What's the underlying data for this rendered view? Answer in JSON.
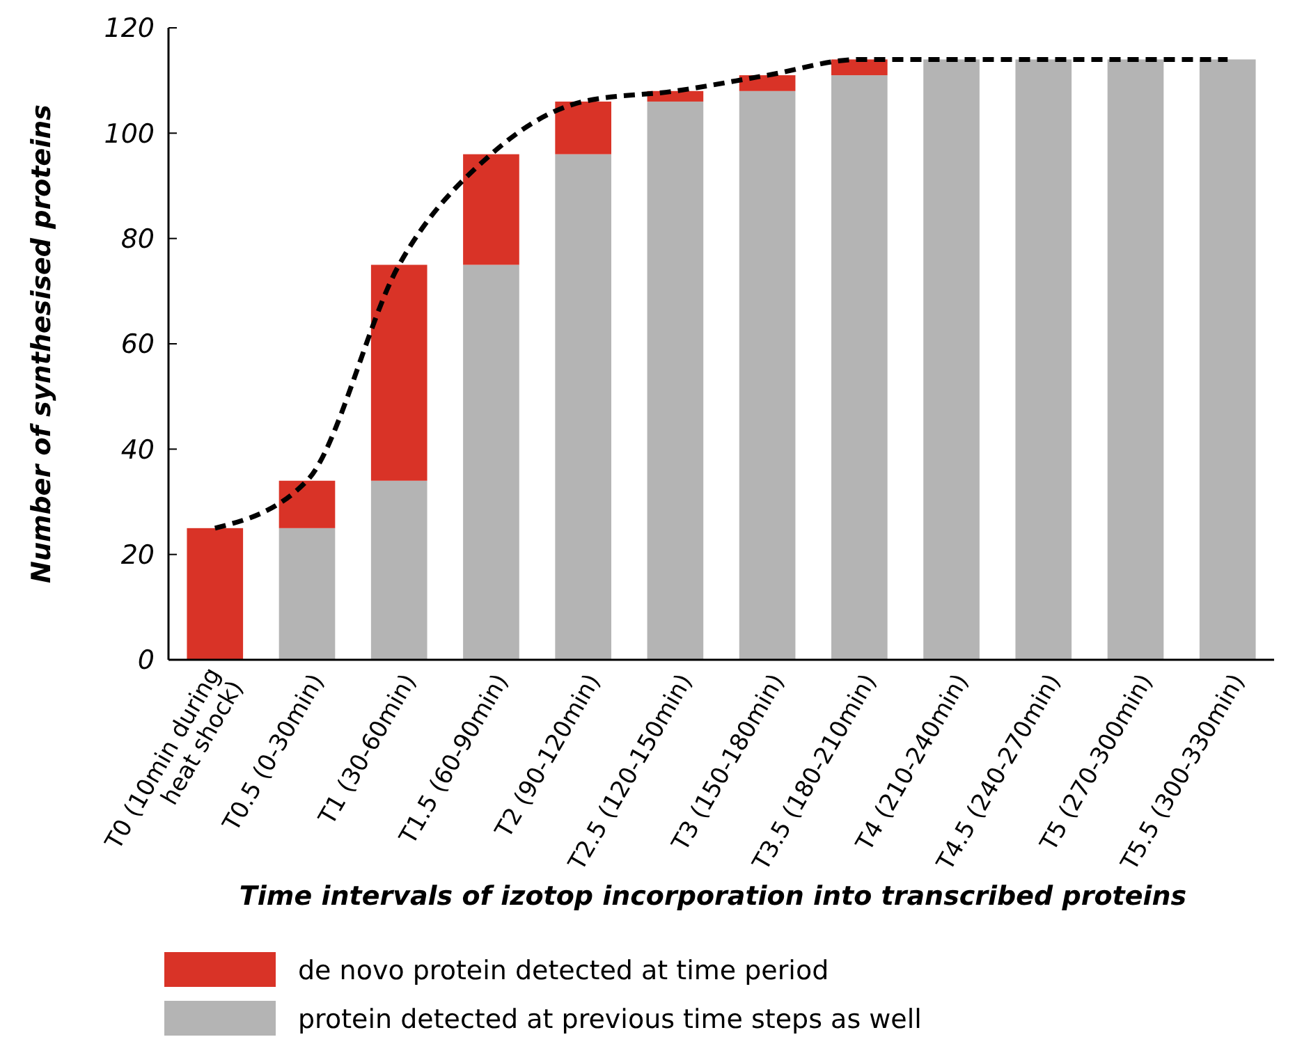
{
  "chart_data": {
    "type": "bar",
    "stacked": true,
    "xlabel": "Time intervals of izotop incorporation into transcribed proteins",
    "ylabel": "Number of synthesised proteins",
    "categories": [
      "T0 (10min during heat shock)",
      "T0.5 (0-30min)",
      "T1 (30-60min)",
      "T1.5 (60-90min)",
      "T2 (90-120min)",
      "T2.5 (120-150min)",
      "T3 (150-180min)",
      "T3.5 (180-210min)",
      "T4 (210-240min)",
      "T4.5 (240-270min)",
      "T5 (270-300min)",
      "T5.5 (300-330min)"
    ],
    "series": [
      {
        "name": "protein detected at previous time steps as well",
        "color": "#b4b4b4",
        "values": [
          0,
          25,
          34,
          75,
          96,
          106,
          108,
          111,
          114,
          114,
          114,
          114
        ]
      },
      {
        "name": "de novo protein detected at time period",
        "color": "#d93327",
        "values": [
          25,
          9,
          41,
          21,
          10,
          2,
          3,
          3,
          0,
          0,
          0,
          0
        ]
      },
      {
        "type": "line",
        "color": "#000000",
        "line_style": "dashed",
        "marker": "none",
        "values": [
          25,
          34,
          75,
          96,
          106,
          108,
          111,
          114,
          114,
          114,
          114,
          114
        ]
      }
    ],
    "ylim": [
      0,
      120
    ],
    "yticks": [
      0,
      20,
      40,
      60,
      80,
      100,
      120
    ],
    "grid": false,
    "legend": "bottom left"
  }
}
